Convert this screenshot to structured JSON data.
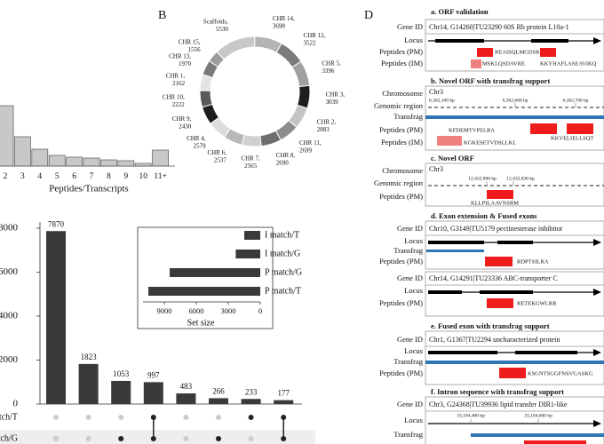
{
  "panel_labels": [
    "B",
    "D"
  ],
  "chart_data": [
    {
      "type": "bar",
      "categories": [
        "2",
        "3",
        "4",
        "5",
        "6",
        "7",
        "8",
        "9",
        "10",
        "11+"
      ],
      "values": [
        68,
        33,
        19,
        12,
        10,
        9,
        7,
        6,
        3,
        18
      ],
      "ylim": [
        0,
        70
      ],
      "xlabel": "Peptides/Transcripts",
      "color": "#c8c8c8"
    },
    {
      "type": "pie",
      "categories": [
        "Scaffolds,",
        "CHR 14,",
        "CHR 12,",
        "CHR 5,",
        "CHR 3,",
        "CHR 2,",
        "CHR 11,",
        "CHR 8,",
        "CHR 7,",
        "CHR 6,",
        "CHR 4,",
        "CHR 9,",
        "CHR 10,",
        "CHR 1,",
        "CHR 13,",
        "CHR 15,"
      ],
      "values": [
        5530,
        3698,
        3522,
        3396,
        3039,
        2883,
        2699,
        2690,
        2565,
        2537,
        2579,
        2430,
        2222,
        2162,
        1970,
        1556
      ],
      "colors": [
        "#c8c8c8",
        "#b4b4b4",
        "#7c7c7c",
        "#a0a0a0",
        "#1e1e1e",
        "#c4c4c4",
        "#8c8c8c",
        "#6e6e6e",
        "#d0d0d0",
        "#b8b8b8",
        "#dcdcdc",
        "#1e1e1e",
        "#5a5a5a",
        "#e4e4e4",
        "#7a7a7a",
        "#9c9c9c"
      ]
    },
    {
      "type": "upset",
      "values": [
        7870,
        1823,
        1053,
        997,
        483,
        266,
        233,
        177
      ],
      "ylim": [
        0,
        8000
      ],
      "yticks": [
        0,
        2000,
        4000,
        6000,
        8000
      ],
      "color": "#3a3a3a",
      "sets": [
        "I match/T",
        "I match/G"
      ],
      "membership": [
        [
          0,
          0,
          0,
          1,
          0,
          0,
          1,
          1
        ],
        [
          0,
          0,
          1,
          1,
          0,
          1,
          0,
          1
        ]
      ]
    },
    {
      "type": "hbar",
      "categories": [
        "I match/T",
        "I match/G",
        "P match/G",
        "P match/T"
      ],
      "values": [
        1500,
        2300,
        8500,
        10500
      ],
      "xlim": [
        0,
        11000
      ],
      "xticks": [
        9000,
        6000,
        3000,
        0
      ],
      "xlabel": "Set size",
      "color": "#3a3a3a"
    }
  ],
  "orf": [
    {
      "title": "a. ORF validation",
      "labels": [
        "Gene ID",
        "Locus",
        "Peptides (PM)",
        "Peptides (IM)"
      ],
      "gene": "Chr14, G14260|TU23290 60S Rb protein L10a-1",
      "peptides": [
        "REAISQLMGDSKEKN",
        "MSKLQSDAVRE",
        "KKYHAFLASEAVIKQ"
      ]
    },
    {
      "title": "b. Novel ORF with transfrag support",
      "labels": [
        "Chromosome",
        "Genomic region",
        "Transfrag",
        "Peptides (PM)",
        "Peptides (IM)"
      ],
      "gene": "Chr3",
      "coords": [
        "6,362,100 bp",
        "6,362,600 bp",
        "6,362,700 bp"
      ],
      "peptides": [
        "KFDEMTVPELRA",
        "KKVELIELLSQT",
        "KGKESETVDSLLKL"
      ]
    },
    {
      "title": "c. Novel ORF",
      "labels": [
        "Chromosome",
        "Genomic region",
        "Peptides (PM)"
      ],
      "gene": "Chr3",
      "coords": [
        "12,432,800 bp",
        "12,432,830 bp"
      ],
      "peptides": [
        "KLLPILAAVNSRM"
      ]
    },
    {
      "title": "d. Exon extension & Fused exons",
      "labels": [
        "Gene ID",
        "Locus",
        "Transfrag",
        "Peptides (PM)",
        "Gene ID",
        "Locus",
        "Peptides (PM)"
      ],
      "genes": [
        "Chr10, G3149|TU5179 pectinesterase inhibitor",
        "Chr14, G14291|TU23336 ABC-transporter C"
      ],
      "peptides": [
        "RDPTSILRA",
        "RETEKGWLRR"
      ]
    },
    {
      "title": "e. Fused exon with transfrag support",
      "labels": [
        "Gene ID",
        "Locus",
        "Transfrag",
        "Peptides (PM)"
      ],
      "gene": "Chr1, G1367|TU2294 uncharacterized protein",
      "peptides": [
        "KSGNTSGGFNSVGASKG"
      ]
    },
    {
      "title": "f. Intron sequence with transfrag support",
      "labels": [
        "Gene ID",
        "Locus",
        "Transfrag"
      ],
      "gene": "Chr3, G24368|TU39936 lipid transfer DIR1-like",
      "coords": [
        "33,104,400 bp",
        "33,104,600 bp"
      ]
    }
  ]
}
